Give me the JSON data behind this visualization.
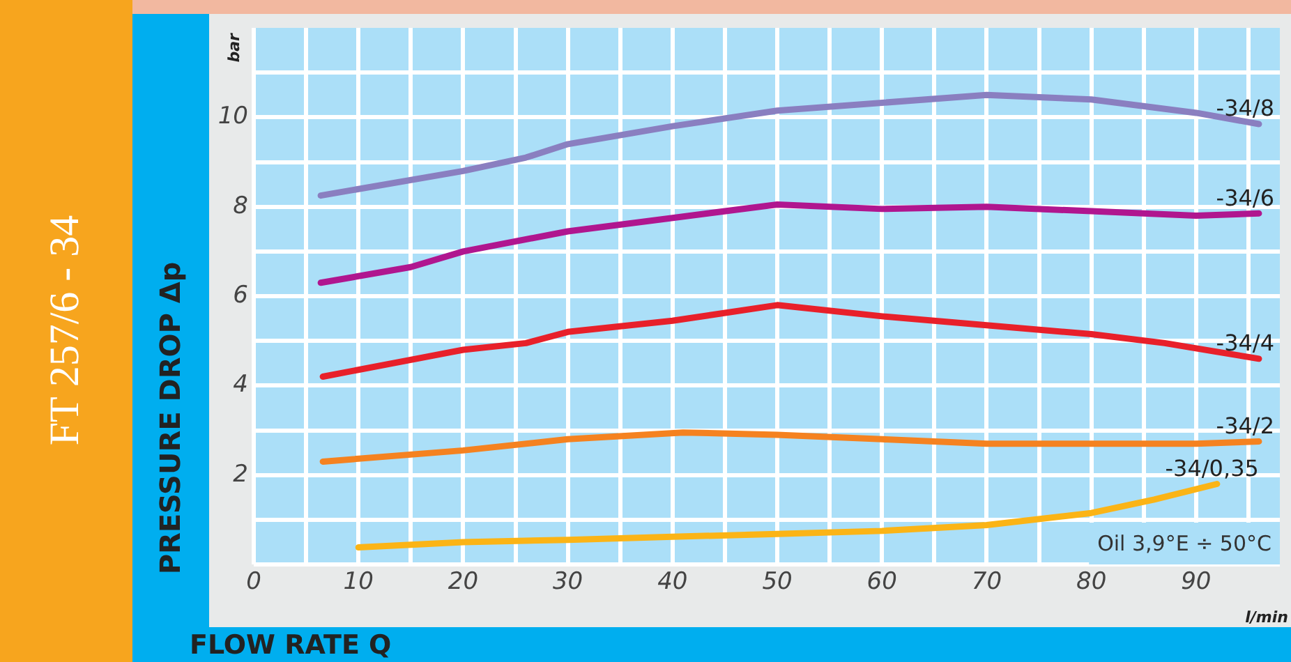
{
  "chart_data": {
    "type": "line",
    "title": "FT 257/6 - 34",
    "xlabel": "FLOW RATE Q",
    "ylabel": "PRESSURE DROP Δp",
    "annotations": [
      "bar",
      "l/min",
      "Oil 3,9°E ÷ 50°C"
    ],
    "xlim": [
      0,
      98
    ],
    "ylim": [
      0,
      12
    ],
    "xticks": [
      0,
      {
        "value": 5,
        "label": null
      },
      10,
      {
        "value": 15,
        "label": null
      },
      20,
      {
        "value": 25,
        "label": null
      },
      30,
      {
        "value": 35,
        "label": null
      },
      40,
      {
        "value": 45,
        "label": null
      },
      50,
      {
        "value": 55,
        "label": null
      },
      60,
      {
        "value": 65,
        "label": null
      },
      70,
      {
        "value": 75,
        "label": null
      },
      80,
      {
        "value": 85,
        "label": null
      },
      90,
      {
        "value": 95,
        "label": null
      }
    ],
    "yticks": [
      {
        "value": 0,
        "label": null
      },
      {
        "value": 1,
        "label": null
      },
      2,
      {
        "value": 3,
        "label": null
      },
      4,
      {
        "value": 5,
        "label": null
      },
      6,
      {
        "value": 7,
        "label": null
      },
      8,
      {
        "value": 9,
        "label": null
      },
      10,
      {
        "value": 11,
        "label": null
      }
    ],
    "grid": true,
    "legend": false,
    "marker": "none",
    "line_style": "solid",
    "series": [
      {
        "name": "-34/8",
        "color": "#8a7fc0",
        "x": [
          6.4,
          20,
          26,
          30,
          40,
          50,
          70,
          80,
          90,
          96
        ],
        "values": [
          8.25,
          8.8,
          9.1,
          9.4,
          9.8,
          10.15,
          10.5,
          10.4,
          10.1,
          9.85
        ]
      },
      {
        "name": "-34/6",
        "color": "#b0168f",
        "x": [
          6.4,
          15,
          20,
          30,
          40,
          50,
          60,
          70,
          80,
          90,
          96
        ],
        "values": [
          6.3,
          6.65,
          7.0,
          7.45,
          7.75,
          8.05,
          7.95,
          8.0,
          7.9,
          7.8,
          7.85
        ]
      },
      {
        "name": "-34/4",
        "color": "#e8202a",
        "x": [
          6.6,
          20,
          26,
          30,
          40,
          50,
          60,
          70,
          80,
          87,
          96
        ],
        "values": [
          4.2,
          4.8,
          4.95,
          5.2,
          5.45,
          5.8,
          5.55,
          5.35,
          5.15,
          4.95,
          4.6
        ]
      },
      {
        "name": "-34/2",
        "color": "#f58220",
        "x": [
          6.6,
          20,
          30,
          41,
          50,
          60,
          70,
          80,
          90,
          96
        ],
        "values": [
          2.3,
          2.55,
          2.8,
          2.95,
          2.9,
          2.8,
          2.7,
          2.7,
          2.7,
          2.75
        ]
      },
      {
        "name": "-34/0,35",
        "color": "#fbb416",
        "x": [
          10,
          20,
          30,
          40,
          50,
          60,
          70,
          80,
          86,
          92
        ],
        "values": [
          0.38,
          0.5,
          0.55,
          0.62,
          0.68,
          0.75,
          0.88,
          1.15,
          1.45,
          1.8
        ]
      }
    ]
  }
}
